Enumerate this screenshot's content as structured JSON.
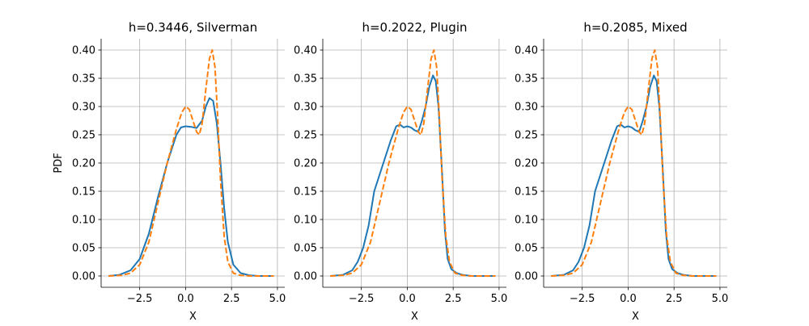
{
  "chart_data": [
    {
      "type": "line",
      "title": "h=0.3446, Silverman",
      "xlabel": "X",
      "ylabel": "PDF",
      "xlim": [
        -4.6,
        5.4
      ],
      "ylim": [
        -0.02,
        0.42
      ],
      "xticks": [
        -2.5,
        0.0,
        2.5,
        5.0
      ],
      "xtick_labels": [
        "−2.5",
        "0.0",
        "2.5",
        "5.0"
      ],
      "yticks": [
        0.0,
        0.05,
        0.1,
        0.15,
        0.2,
        0.25,
        0.3,
        0.35,
        0.4
      ],
      "ytick_labels": [
        "0.00",
        "0.05",
        "0.10",
        "0.15",
        "0.20",
        "0.25",
        "0.30",
        "0.35",
        "0.40"
      ],
      "grid": true,
      "series": [
        {
          "color": "#1f77b4",
          "style": "solid",
          "x": [
            -4.2,
            -3.6,
            -3.0,
            -2.5,
            -2.0,
            -1.5,
            -1.0,
            -0.5,
            -0.25,
            0.0,
            0.3,
            0.6,
            0.9,
            1.1,
            1.3,
            1.5,
            1.7,
            1.9,
            2.1,
            2.3,
            2.6,
            3.0,
            3.5,
            4.0,
            4.8
          ],
          "y": [
            0.0,
            0.002,
            0.01,
            0.03,
            0.075,
            0.14,
            0.2,
            0.25,
            0.263,
            0.265,
            0.264,
            0.262,
            0.275,
            0.3,
            0.315,
            0.31,
            0.27,
            0.2,
            0.12,
            0.06,
            0.02,
            0.005,
            0.001,
            0.0,
            0.0
          ]
        },
        {
          "color": "#ff7f0e",
          "style": "dashed",
          "x": [
            -4.2,
            -3.5,
            -3.0,
            -2.5,
            -2.0,
            -1.5,
            -1.0,
            -0.5,
            -0.2,
            0.0,
            0.2,
            0.4,
            0.6,
            0.75,
            0.9,
            1.1,
            1.3,
            1.45,
            1.6,
            1.75,
            1.9,
            2.1,
            2.3,
            2.6,
            3.0,
            3.5,
            4.8
          ],
          "y": [
            0.0,
            0.001,
            0.005,
            0.02,
            0.06,
            0.13,
            0.2,
            0.26,
            0.29,
            0.3,
            0.295,
            0.275,
            0.255,
            0.25,
            0.27,
            0.33,
            0.385,
            0.4,
            0.37,
            0.28,
            0.17,
            0.07,
            0.025,
            0.005,
            0.001,
            0.0,
            0.0
          ]
        }
      ]
    },
    {
      "type": "line",
      "title": "h=0.2022, Plugin",
      "xlabel": "X",
      "ylabel": "",
      "xlim": [
        -4.6,
        5.4
      ],
      "ylim": [
        -0.02,
        0.42
      ],
      "xticks": [
        -2.5,
        0.0,
        2.5,
        5.0
      ],
      "xtick_labels": [
        "−2.5",
        "0.0",
        "2.5",
        "5.0"
      ],
      "yticks": [
        0.0,
        0.05,
        0.1,
        0.15,
        0.2,
        0.25,
        0.3,
        0.35,
        0.4
      ],
      "ytick_labels": [
        "0.00",
        "0.05",
        "0.10",
        "0.15",
        "0.20",
        "0.25",
        "0.30",
        "0.35",
        "0.40"
      ],
      "grid": true,
      "series": [
        {
          "color": "#1f77b4",
          "style": "solid",
          "x": [
            -4.2,
            -3.5,
            -3.0,
            -2.7,
            -2.4,
            -2.1,
            -1.8,
            -1.5,
            -1.2,
            -0.9,
            -0.6,
            -0.4,
            -0.2,
            0.0,
            0.2,
            0.4,
            0.6,
            0.8,
            1.0,
            1.2,
            1.4,
            1.55,
            1.7,
            1.9,
            2.05,
            2.2,
            2.4,
            2.7,
            3.0,
            3.5,
            4.8
          ],
          "y": [
            0.0,
            0.002,
            0.01,
            0.025,
            0.05,
            0.09,
            0.15,
            0.18,
            0.21,
            0.24,
            0.265,
            0.268,
            0.263,
            0.265,
            0.263,
            0.258,
            0.255,
            0.275,
            0.3,
            0.335,
            0.355,
            0.345,
            0.3,
            0.18,
            0.08,
            0.03,
            0.012,
            0.005,
            0.002,
            0.0,
            0.0
          ]
        },
        {
          "color": "#ff7f0e",
          "style": "dashed",
          "x": [
            -4.2,
            -3.5,
            -3.0,
            -2.5,
            -2.0,
            -1.5,
            -1.0,
            -0.5,
            -0.2,
            0.0,
            0.2,
            0.4,
            0.6,
            0.75,
            0.9,
            1.1,
            1.3,
            1.45,
            1.6,
            1.75,
            1.9,
            2.1,
            2.3,
            2.6,
            3.0,
            3.5,
            4.8
          ],
          "y": [
            0.0,
            0.001,
            0.005,
            0.02,
            0.06,
            0.13,
            0.2,
            0.26,
            0.29,
            0.3,
            0.295,
            0.275,
            0.255,
            0.25,
            0.27,
            0.33,
            0.385,
            0.4,
            0.37,
            0.28,
            0.17,
            0.07,
            0.025,
            0.005,
            0.001,
            0.0,
            0.0
          ]
        }
      ]
    },
    {
      "type": "line",
      "title": "h=0.2085, Mixed",
      "xlabel": "X",
      "ylabel": "",
      "xlim": [
        -4.6,
        5.4
      ],
      "ylim": [
        -0.02,
        0.42
      ],
      "xticks": [
        -2.5,
        0.0,
        2.5,
        5.0
      ],
      "xtick_labels": [
        "−2.5",
        "0.0",
        "2.5",
        "5.0"
      ],
      "yticks": [
        0.0,
        0.05,
        0.1,
        0.15,
        0.2,
        0.25,
        0.3,
        0.35,
        0.4
      ],
      "ytick_labels": [
        "0.00",
        "0.05",
        "0.10",
        "0.15",
        "0.20",
        "0.25",
        "0.30",
        "0.35",
        "0.40"
      ],
      "grid": true,
      "series": [
        {
          "color": "#1f77b4",
          "style": "solid",
          "x": [
            -4.2,
            -3.5,
            -3.0,
            -2.7,
            -2.4,
            -2.1,
            -1.8,
            -1.5,
            -1.2,
            -0.9,
            -0.6,
            -0.4,
            -0.2,
            0.0,
            0.2,
            0.4,
            0.6,
            0.8,
            1.0,
            1.2,
            1.4,
            1.55,
            1.7,
            1.9,
            2.05,
            2.2,
            2.4,
            2.7,
            3.0,
            3.5,
            4.8
          ],
          "y": [
            0.0,
            0.002,
            0.01,
            0.025,
            0.05,
            0.09,
            0.15,
            0.18,
            0.21,
            0.24,
            0.265,
            0.268,
            0.263,
            0.265,
            0.263,
            0.258,
            0.255,
            0.275,
            0.3,
            0.335,
            0.355,
            0.345,
            0.3,
            0.18,
            0.08,
            0.03,
            0.012,
            0.005,
            0.002,
            0.0,
            0.0
          ]
        },
        {
          "color": "#ff7f0e",
          "style": "dashed",
          "x": [
            -4.2,
            -3.5,
            -3.0,
            -2.5,
            -2.0,
            -1.5,
            -1.0,
            -0.5,
            -0.2,
            0.0,
            0.2,
            0.4,
            0.6,
            0.75,
            0.9,
            1.1,
            1.3,
            1.45,
            1.6,
            1.75,
            1.9,
            2.1,
            2.3,
            2.6,
            3.0,
            3.5,
            4.8
          ],
          "y": [
            0.0,
            0.001,
            0.005,
            0.02,
            0.06,
            0.13,
            0.2,
            0.26,
            0.29,
            0.3,
            0.295,
            0.275,
            0.255,
            0.25,
            0.27,
            0.33,
            0.385,
            0.4,
            0.37,
            0.28,
            0.17,
            0.07,
            0.025,
            0.005,
            0.001,
            0.0,
            0.0
          ]
        }
      ]
    }
  ]
}
